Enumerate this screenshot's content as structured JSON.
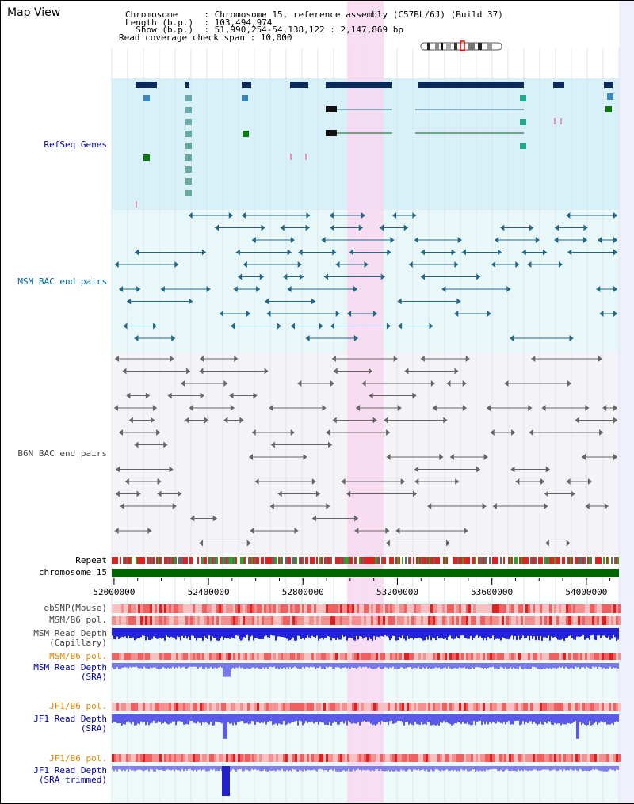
{
  "view": {
    "title": "Map View",
    "info_lines": [
      "Chromosome     : Chromosome 15, reference assembly (C57BL/6J) (Build 37)",
      "Length (b.p.)  : 103,494,974",
      "  Show (b.p.)  : 51,990,254-54,138,122 : 2,147,869 bp",
      "Read coverage check span : 10,000"
    ]
  },
  "tracks": {
    "refseq": "RefSeq Genes",
    "msm_bac": "MSM BAC end pairs",
    "b6n_bac": "B6N BAC end pairs",
    "repeat": "Repeat",
    "chromosome": "chromosome 15",
    "dbsnp": "dbSNP(Mouse)",
    "msm_pol1": "MSM/B6 pol.",
    "msm_depth_cap": "MSM Read Depth\n(Capillary)",
    "msm_pol2": "MSM/B6 pol.",
    "msm_depth_sra": "MSM Read Depth\n(SRA)",
    "jf1_pol1": "JF1/B6 pol.",
    "jf1_depth_sra": "JF1 Read Depth\n(SRA)",
    "jf1_pol2": "JF1/B6 pol.",
    "jf1_depth_trim": "JF1 Read Depth\n(SRA trimmed)"
  },
  "axis": {
    "range": [
      51990254,
      54138122
    ],
    "ticks": [
      {
        "pos": 52000000,
        "label": "52000000"
      },
      {
        "pos": 52400000,
        "label": "52400000"
      },
      {
        "pos": 52800000,
        "label": "52800000"
      },
      {
        "pos": 53200000,
        "label": "53200000"
      },
      {
        "pos": 53600000,
        "label": "53600000"
      },
      {
        "pos": 54000000,
        "label": "54000000"
      }
    ]
  },
  "colors": {
    "refseq_bg": "#d8f0f8",
    "msm_bg": "#e8f8f8",
    "b6n_bg": "#f4f4f8",
    "highlight": "#f8d8f0",
    "refseq_gene": "#0a2a5a",
    "msm_pair": "#226688",
    "b6n_pair": "#666666",
    "chromosome_bar": "#006600",
    "repeat_red": "#dd2222",
    "depth_capillary": "#2222dd",
    "depth_sra": "#7777ee",
    "label_blue": "#0000aa",
    "label_orange": "#dd8800",
    "label_teal": "#006699"
  }
}
